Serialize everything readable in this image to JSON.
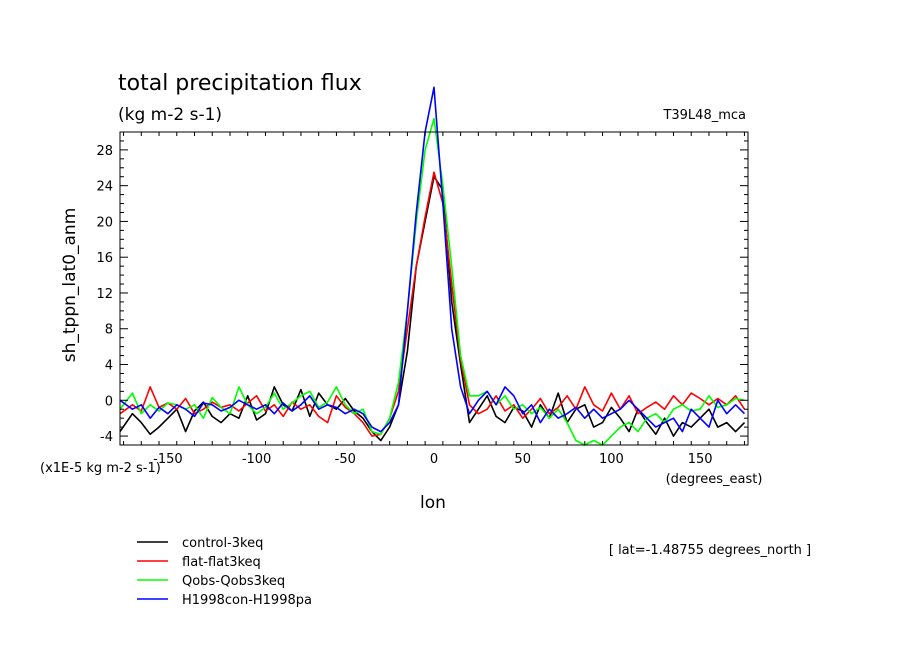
{
  "chart_data": {
    "type": "line",
    "title": "total precipitation flux",
    "subtitle": "(kg m-2 s-1)",
    "model_label": "T39L48_mca",
    "xlabel": "lon",
    "xunits": "(degrees_east)",
    "ylabel": "sh_tppn_lat0_anm",
    "yscale_note": "(x1E-5 kg m-2 s-1)",
    "lat_note": "[ lat=-1.48755 degrees_north ]",
    "xlim": [
      -177,
      177
    ],
    "ylim": [
      -5,
      30
    ],
    "xticks": [
      -150,
      -100,
      -50,
      0,
      50,
      100,
      150
    ],
    "yticks": [
      -4,
      0,
      4,
      8,
      12,
      16,
      20,
      24,
      28
    ],
    "grid": false,
    "legend_position": "bottom-left",
    "series": [
      {
        "name": "control-3keq",
        "color": "#000000",
        "x": [
          -177,
          -170,
          -165,
          -160,
          -155,
          -150,
          -145,
          -140,
          -135,
          -130,
          -125,
          -120,
          -115,
          -110,
          -105,
          -100,
          -95,
          -90,
          -85,
          -80,
          -75,
          -70,
          -65,
          -60,
          -55,
          -50,
          -45,
          -40,
          -35,
          -30,
          -25,
          -20,
          -15,
          -10,
          -5,
          0,
          5,
          10,
          15,
          20,
          25,
          30,
          35,
          40,
          45,
          50,
          55,
          60,
          65,
          70,
          75,
          80,
          85,
          90,
          95,
          100,
          105,
          110,
          115,
          120,
          125,
          130,
          135,
          140,
          145,
          150,
          155,
          160,
          165,
          170,
          175
        ],
        "y": [
          -3.5,
          -1.5,
          -2.5,
          -3.8,
          -3.0,
          -2.0,
          -1.0,
          -3.5,
          -1.2,
          -0.2,
          -1.8,
          -2.5,
          -1.5,
          -2.0,
          0.5,
          -2.2,
          -1.5,
          1.5,
          -0.5,
          -1.2,
          1.2,
          -1.8,
          0.8,
          -0.5,
          -1.0,
          0.2,
          -1.2,
          -2.0,
          -3.5,
          -4.5,
          -3.0,
          -0.5,
          5.5,
          15.0,
          20.0,
          25.0,
          23.5,
          11.0,
          4.0,
          -2.5,
          -1.0,
          0.5,
          -1.8,
          -2.5,
          -0.8,
          -1.2,
          -3.0,
          -0.5,
          -2.0,
          0.8,
          -2.5,
          -1.0,
          -0.5,
          -3.0,
          -2.5,
          -0.8,
          -2.0,
          -3.5,
          -1.0,
          -2.5,
          -3.8,
          -2.0,
          -4.0,
          -2.5,
          -3.0,
          -2.0,
          -1.0,
          -3.0,
          -2.5,
          -3.5,
          -2.5
        ]
      },
      {
        "name": "flat-flat3keq",
        "color": "#ff0000",
        "x": [
          -177,
          -170,
          -165,
          -160,
          -155,
          -150,
          -145,
          -140,
          -135,
          -130,
          -125,
          -120,
          -115,
          -110,
          -105,
          -100,
          -95,
          -90,
          -85,
          -80,
          -75,
          -70,
          -65,
          -60,
          -55,
          -50,
          -45,
          -40,
          -35,
          -30,
          -25,
          -20,
          -15,
          -10,
          -5,
          0,
          5,
          10,
          15,
          20,
          25,
          30,
          35,
          40,
          45,
          50,
          55,
          60,
          65,
          70,
          75,
          80,
          85,
          90,
          95,
          100,
          105,
          110,
          115,
          120,
          125,
          130,
          135,
          140,
          145,
          150,
          155,
          160,
          165,
          170,
          175
        ],
        "y": [
          -1.5,
          -0.5,
          -1.2,
          1.5,
          -0.8,
          -0.3,
          -1.0,
          0.2,
          -1.5,
          -1.0,
          -0.2,
          -0.8,
          -0.5,
          -1.2,
          -0.3,
          0.5,
          -1.2,
          -0.5,
          -1.8,
          -0.2,
          -1.0,
          -0.5,
          -1.8,
          -2.5,
          0.5,
          -0.8,
          -1.5,
          -2.5,
          -4.0,
          -3.8,
          -2.0,
          1.0,
          8.0,
          15.0,
          20.5,
          25.5,
          22.0,
          13.0,
          4.5,
          -0.5,
          -1.5,
          -1.0,
          0.5,
          -1.2,
          -0.5,
          -2.0,
          -1.0,
          0.2,
          -1.5,
          -0.8,
          0.5,
          -1.0,
          1.5,
          -0.5,
          -1.2,
          0.8,
          -1.0,
          0.5,
          -1.5,
          -0.8,
          -0.2,
          -1.0,
          0.5,
          -0.5,
          0.8,
          0.2,
          -0.5,
          0.2,
          -0.5,
          0.5,
          -1.0
        ]
      },
      {
        "name": "Qobs-Qobs3keq",
        "color": "#00ff00",
        "x": [
          -177,
          -170,
          -165,
          -160,
          -155,
          -150,
          -145,
          -140,
          -135,
          -130,
          -125,
          -120,
          -115,
          -110,
          -105,
          -100,
          -95,
          -90,
          -85,
          -80,
          -75,
          -70,
          -65,
          -60,
          -55,
          -50,
          -45,
          -40,
          -35,
          -30,
          -25,
          -20,
          -15,
          -10,
          -5,
          0,
          5,
          10,
          15,
          20,
          25,
          30,
          35,
          40,
          45,
          50,
          55,
          60,
          65,
          70,
          75,
          80,
          85,
          90,
          95,
          100,
          105,
          110,
          115,
          120,
          125,
          130,
          135,
          140,
          145,
          150,
          155,
          160,
          165,
          170,
          175
        ],
        "y": [
          -1.0,
          0.8,
          -1.5,
          -0.5,
          -1.2,
          -0.3,
          -0.5,
          -1.0,
          -0.5,
          -2.0,
          0.3,
          -0.8,
          -1.5,
          1.5,
          -0.5,
          -1.5,
          -0.8,
          0.8,
          -1.0,
          -0.3,
          0.5,
          1.0,
          -0.8,
          -0.2,
          1.5,
          -0.5,
          -1.5,
          -1.0,
          -3.5,
          -3.8,
          -2.0,
          2.0,
          10.0,
          20.0,
          28.0,
          31.5,
          24.0,
          15.0,
          5.0,
          0.5,
          0.5,
          1.0,
          -0.5,
          0.5,
          -1.0,
          -0.5,
          -1.5,
          -0.8,
          -2.0,
          -1.0,
          -2.5,
          -4.5,
          -5.0,
          -4.5,
          -5.0,
          -4.0,
          -3.0,
          -2.5,
          -3.5,
          -2.0,
          -1.5,
          -2.5,
          -1.0,
          -0.5,
          -1.2,
          -1.0,
          0.5,
          -0.8,
          -0.5,
          0.2,
          0.0
        ]
      },
      {
        "name": "H1998con-H1998pa",
        "color": "#0000ff",
        "x": [
          -177,
          -170,
          -165,
          -160,
          -155,
          -150,
          -145,
          -140,
          -135,
          -130,
          -125,
          -120,
          -115,
          -110,
          -105,
          -100,
          -95,
          -90,
          -85,
          -80,
          -75,
          -70,
          -65,
          -60,
          -55,
          -50,
          -45,
          -40,
          -35,
          -30,
          -25,
          -20,
          -15,
          -10,
          -5,
          0,
          5,
          10,
          15,
          20,
          25,
          30,
          35,
          40,
          45,
          50,
          55,
          60,
          65,
          70,
          75,
          80,
          85,
          90,
          95,
          100,
          105,
          110,
          115,
          120,
          125,
          130,
          135,
          140,
          145,
          150,
          155,
          160,
          165,
          170,
          175
        ],
        "y": [
          0.0,
          -1.0,
          -0.5,
          -2.0,
          -0.8,
          -1.5,
          -0.5,
          -1.0,
          -1.8,
          -0.3,
          -0.5,
          -1.2,
          -0.8,
          0.0,
          -0.5,
          -1.0,
          -0.5,
          -1.5,
          -0.3,
          -1.2,
          -0.5,
          0.5,
          -1.0,
          -0.5,
          -0.8,
          -1.5,
          -1.0,
          -1.5,
          -3.0,
          -3.5,
          -2.5,
          -0.5,
          10.0,
          21.0,
          30.0,
          35.0,
          22.0,
          8.0,
          1.5,
          -1.5,
          0.0,
          1.0,
          -0.5,
          1.5,
          0.5,
          -1.5,
          -0.5,
          -2.5,
          -1.0,
          -2.0,
          -1.5,
          -0.8,
          -2.0,
          -1.0,
          -2.0,
          -1.5,
          -1.0,
          0.0,
          -1.0,
          -2.0,
          -3.0,
          -2.5,
          -2.0,
          -3.5,
          -1.0,
          -2.0,
          -3.0,
          0.0,
          -1.5,
          -0.5,
          -1.5
        ]
      }
    ]
  }
}
